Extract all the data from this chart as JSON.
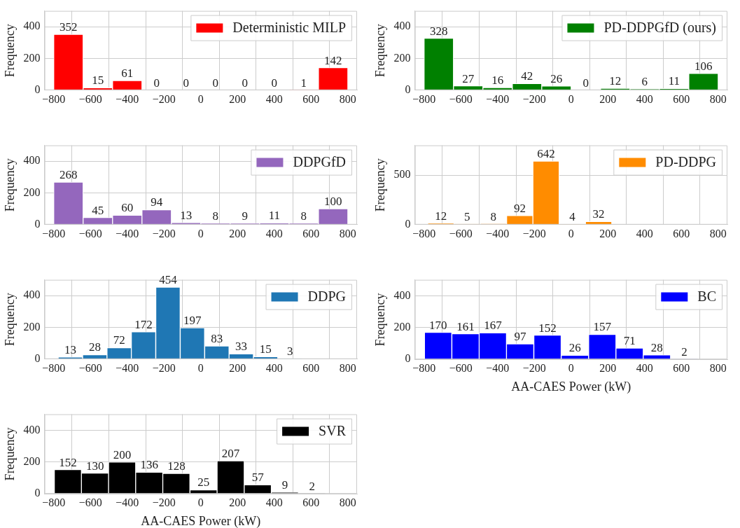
{
  "chart_data": [
    {
      "type": "histogram",
      "ylabel": "Frequency",
      "bins": [
        -800,
        -640,
        -480,
        -320,
        -160,
        0,
        160,
        320,
        480,
        640,
        800
      ],
      "series": [
        {
          "name": "Deterministic MILP",
          "color": "#ff0000",
          "values": [
            352,
            15,
            61,
            0,
            0,
            0,
            0,
            0,
            1,
            142
          ]
        }
      ],
      "xlim": [
        -850,
        850
      ],
      "xticks": [
        -800,
        -600,
        -400,
        -200,
        0,
        200,
        400,
        600,
        800
      ],
      "ylim": [
        0,
        500
      ],
      "yticks": [
        0,
        200,
        400
      ],
      "grid": true,
      "legend": "top right",
      "data_labels": true
    },
    {
      "type": "histogram",
      "ylabel": "Frequency",
      "bins": [
        -800,
        -640,
        -480,
        -320,
        -160,
        0,
        160,
        320,
        480,
        640,
        800
      ],
      "series": [
        {
          "name": "PD-DDPGfD (ours)",
          "color": "#008000",
          "values": [
            328,
            27,
            16,
            42,
            26,
            0,
            12,
            6,
            11,
            106
          ]
        }
      ],
      "xlim": [
        -850,
        850
      ],
      "xticks": [
        -800,
        -600,
        -400,
        -200,
        0,
        200,
        400,
        600,
        800
      ],
      "ylim": [
        0,
        500
      ],
      "yticks": [
        0,
        200,
        400
      ],
      "grid": true,
      "legend": "top right",
      "data_labels": true
    },
    {
      "type": "histogram",
      "ylabel": "Frequency",
      "bins": [
        -800,
        -640,
        -480,
        -320,
        -160,
        0,
        160,
        320,
        480,
        640,
        800
      ],
      "series": [
        {
          "name": "DDPGfD",
          "color": "#9467bd",
          "values": [
            268,
            45,
            60,
            94,
            13,
            8,
            9,
            11,
            8,
            100
          ]
        }
      ],
      "xlim": [
        -850,
        850
      ],
      "xticks": [
        -800,
        -600,
        -400,
        -200,
        0,
        200,
        400,
        600,
        800
      ],
      "ylim": [
        0,
        500
      ],
      "yticks": [
        0,
        200,
        400
      ],
      "grid": true,
      "legend": "top right",
      "data_labels": true
    },
    {
      "type": "histogram",
      "ylabel": "Frequency",
      "bins": [
        -780,
        -637,
        -494,
        -351,
        -208,
        -65,
        78,
        221
      ],
      "series": [
        {
          "name": "PD-DDPG",
          "color": "#ff8c00",
          "values": [
            12,
            5,
            8,
            92,
            642,
            4,
            32
          ]
        }
      ],
      "xlim": [
        -850,
        850
      ],
      "xticks": [
        -800,
        -600,
        -400,
        -200,
        0,
        200,
        400,
        600,
        800
      ],
      "ylim": [
        0,
        800
      ],
      "yticks": [
        0,
        500
      ],
      "grid": true,
      "legend": "top right",
      "data_labels": true
    },
    {
      "type": "histogram",
      "ylabel": "Frequency",
      "bins": [
        -776,
        -643,
        -510,
        -378,
        -245,
        -112,
        21,
        154,
        286,
        419,
        552
      ],
      "series": [
        {
          "name": "DDPG",
          "color": "#1f77b4",
          "values": [
            13,
            28,
            72,
            172,
            454,
            197,
            83,
            33,
            15,
            3
          ]
        }
      ],
      "xlim": [
        -850,
        850
      ],
      "xticks": [
        -800,
        -600,
        -400,
        -200,
        0,
        200,
        400,
        600,
        800
      ],
      "ylim": [
        0,
        500
      ],
      "yticks": [
        0,
        200,
        400
      ],
      "grid": true,
      "legend": "top right",
      "data_labels": true
    },
    {
      "type": "histogram",
      "xlabel": "AA-CAES Power (kW)",
      "ylabel": "Frequency",
      "bins": [
        -798,
        -649,
        -500,
        -352,
        -203,
        -54,
        95,
        244,
        392,
        541,
        690
      ],
      "series": [
        {
          "name": "BC",
          "color": "#0000ff",
          "values": [
            170,
            161,
            167,
            97,
            152,
            26,
            157,
            71,
            28,
            2
          ]
        }
      ],
      "xlim": [
        -850,
        850
      ],
      "xticks": [
        -800,
        -600,
        -400,
        -200,
        0,
        200,
        400,
        600,
        800
      ],
      "ylim": [
        0,
        500
      ],
      "yticks": [
        0,
        200,
        400
      ],
      "grid": true,
      "legend": "top right",
      "data_labels": true
    },
    {
      "type": "histogram",
      "xlabel": "AA-CAES Power (kW)",
      "ylabel": "Frequency",
      "bins": [
        -797,
        -649,
        -502,
        -354,
        -207,
        -59,
        89,
        236,
        384,
        531,
        679
      ],
      "series": [
        {
          "name": "SVR",
          "color": "#000000",
          "values": [
            152,
            130,
            200,
            136,
            128,
            25,
            207,
            57,
            9,
            2
          ]
        }
      ],
      "xlim": [
        -850,
        850
      ],
      "xticks": [
        -800,
        -600,
        -400,
        -200,
        0,
        200,
        400,
        600,
        800
      ],
      "ylim": [
        0,
        500
      ],
      "yticks": [
        0,
        200,
        400
      ],
      "grid": true,
      "legend": "top right",
      "data_labels": true
    }
  ]
}
